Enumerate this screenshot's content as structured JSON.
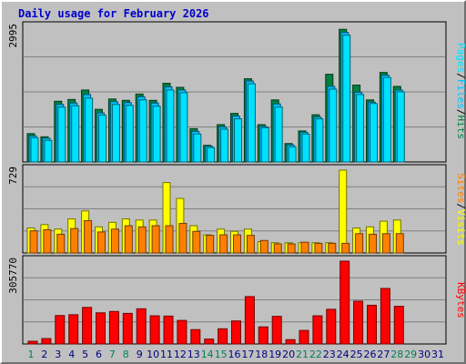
{
  "title": "Daily usage for February 2026",
  "colors": {
    "hits": "#008040",
    "files": "#00c0ff",
    "pages": "#00e0ff",
    "visits": "#ffff00",
    "sites": "#ff8000",
    "kbytes": "#ff0000",
    "weekend_label": "#00805c",
    "weekday_label": "#000080"
  },
  "chart_data": [
    {
      "type": "bar",
      "panel": "hits_files_pages",
      "y_max_label": "2995",
      "ylim": [
        0,
        2995
      ],
      "side_labels": [
        "Pages",
        "Files",
        "Hits"
      ],
      "x": [
        "1",
        "2",
        "3",
        "4",
        "5",
        "6",
        "7",
        "8",
        "9",
        "10",
        "11",
        "12",
        "13",
        "14",
        "15",
        "16",
        "17",
        "18",
        "19",
        "20",
        "21",
        "22",
        "23",
        "24",
        "25",
        "26",
        "27",
        "28",
        "29",
        "30",
        "31"
      ],
      "series": [
        {
          "name": "Hits",
          "values": [
            630,
            560,
            1350,
            1390,
            1600,
            1170,
            1400,
            1370,
            1510,
            1370,
            1750,
            1660,
            740,
            370,
            830,
            1080,
            1850,
            830,
            1380,
            410,
            690,
            1050,
            1950,
            2950,
            1710,
            1380,
            1990,
            1680,
            0,
            0,
            0
          ]
        },
        {
          "name": "Files",
          "values": [
            580,
            530,
            1280,
            1310,
            1500,
            1090,
            1340,
            1320,
            1450,
            1310,
            1670,
            1600,
            680,
            350,
            780,
            1020,
            1800,
            790,
            1290,
            380,
            660,
            1000,
            1680,
            2880,
            1550,
            1330,
            1930,
            1600,
            0,
            0,
            0
          ]
        },
        {
          "name": "Pages",
          "values": [
            540,
            480,
            1220,
            1250,
            1420,
            1040,
            1280,
            1260,
            1380,
            1240,
            1600,
            1540,
            620,
            320,
            730,
            960,
            1740,
            760,
            1220,
            340,
            620,
            960,
            1620,
            2820,
            1500,
            1300,
            1880,
            1560,
            0,
            0,
            0
          ]
        }
      ]
    },
    {
      "type": "bar",
      "panel": "visits_sites",
      "y_max_label": "729",
      "ylim": [
        0,
        729
      ],
      "side_labels": [
        "Sites",
        "Visits"
      ],
      "x": [
        "1",
        "2",
        "3",
        "4",
        "5",
        "6",
        "7",
        "8",
        "9",
        "10",
        "11",
        "12",
        "13",
        "14",
        "15",
        "16",
        "17",
        "18",
        "19",
        "20",
        "21",
        "22",
        "23",
        "24",
        "25",
        "26",
        "27",
        "28",
        "29",
        "30",
        "31"
      ],
      "series": [
        {
          "name": "Visits",
          "values": [
            220,
            250,
            210,
            300,
            370,
            230,
            270,
            300,
            290,
            290,
            620,
            480,
            240,
            160,
            210,
            190,
            210,
            100,
            90,
            90,
            90,
            90,
            90,
            729,
            220,
            230,
            280,
            290,
            0,
            0,
            0
          ]
        },
        {
          "name": "Sites",
          "values": [
            195,
            205,
            165,
            215,
            285,
            185,
            210,
            240,
            230,
            240,
            240,
            260,
            190,
            155,
            160,
            160,
            155,
            110,
            80,
            80,
            95,
            85,
            85,
            85,
            170,
            165,
            170,
            170,
            0,
            0,
            0
          ]
        }
      ]
    },
    {
      "type": "bar",
      "panel": "kbytes",
      "y_max_label": "305770",
      "ylim": [
        0,
        305770
      ],
      "side_labels": [
        "KBytes"
      ],
      "x": [
        "1",
        "2",
        "3",
        "4",
        "5",
        "6",
        "7",
        "8",
        "9",
        "10",
        "11",
        "12",
        "13",
        "14",
        "15",
        "16",
        "17",
        "18",
        "19",
        "20",
        "21",
        "22",
        "23",
        "24",
        "25",
        "26",
        "27",
        "28",
        "29",
        "30",
        "31"
      ],
      "series": [
        {
          "name": "KBytes",
          "values": [
            10000,
            20000,
            105000,
            108000,
            135000,
            115000,
            120000,
            113000,
            130000,
            104000,
            103000,
            87000,
            53000,
            18000,
            56000,
            85000,
            175000,
            63000,
            102000,
            16000,
            50000,
            104000,
            128000,
            305770,
            158000,
            143000,
            205000,
            139000,
            0,
            0,
            0
          ]
        }
      ]
    }
  ],
  "x_labels": [
    {
      "text": "1",
      "weekend": true
    },
    {
      "text": "2",
      "weekend": false
    },
    {
      "text": "3",
      "weekend": false
    },
    {
      "text": "4",
      "weekend": false
    },
    {
      "text": "5",
      "weekend": false
    },
    {
      "text": "6",
      "weekend": false
    },
    {
      "text": "7",
      "weekend": true
    },
    {
      "text": "8",
      "weekend": true
    },
    {
      "text": "9",
      "weekend": false
    },
    {
      "text": "10",
      "weekend": false
    },
    {
      "text": "11",
      "weekend": false
    },
    {
      "text": "12",
      "weekend": false
    },
    {
      "text": "13",
      "weekend": false
    },
    {
      "text": "14",
      "weekend": true
    },
    {
      "text": "15",
      "weekend": true
    },
    {
      "text": "16",
      "weekend": false
    },
    {
      "text": "17",
      "weekend": false
    },
    {
      "text": "18",
      "weekend": false
    },
    {
      "text": "19",
      "weekend": false
    },
    {
      "text": "20",
      "weekend": false
    },
    {
      "text": "21",
      "weekend": true
    },
    {
      "text": "22",
      "weekend": true
    },
    {
      "text": "23",
      "weekend": false
    },
    {
      "text": "24",
      "weekend": false
    },
    {
      "text": "25",
      "weekend": false
    },
    {
      "text": "26",
      "weekend": false
    },
    {
      "text": "27",
      "weekend": false
    },
    {
      "text": "28",
      "weekend": true
    },
    {
      "text": "29",
      "weekend": true
    },
    {
      "text": "30",
      "weekend": false
    },
    {
      "text": "31",
      "weekend": false
    }
  ]
}
